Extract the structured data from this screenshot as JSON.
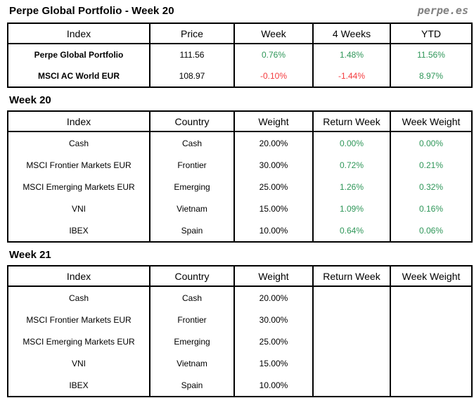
{
  "page": {
    "title": "Perpe Global Portfolio - Week 20",
    "brand": "perpe.es"
  },
  "colors": {
    "positive": "#2E9658",
    "negative": "#F43B3E",
    "brand_gray": "#808080",
    "border": "#000000"
  },
  "summary_table": {
    "headers": [
      "Index",
      "Price",
      "Week",
      "4 Weeks",
      "YTD"
    ],
    "rows": [
      {
        "index": "Perpe Global Portfolio",
        "price": "111.56",
        "week": "0.76%",
        "four_weeks": "1.48%",
        "ytd": "11.56%"
      },
      {
        "index": "MSCI AC World EUR",
        "price": "108.97",
        "week": "-0.10%",
        "four_weeks": "-1.44%",
        "ytd": "8.97%"
      }
    ]
  },
  "week20": {
    "label": "Week 20",
    "headers": [
      "Index",
      "Country",
      "Weight",
      "Return Week",
      "Week Weight"
    ],
    "rows": [
      {
        "index": "Cash",
        "country": "Cash",
        "weight": "20.00%",
        "return_week": "0.00%",
        "week_weight": "0.00%"
      },
      {
        "index": "MSCI Frontier Markets EUR",
        "country": "Frontier",
        "weight": "30.00%",
        "return_week": "0.72%",
        "week_weight": "0.21%"
      },
      {
        "index": "MSCI Emerging Markets EUR",
        "country": "Emerging",
        "weight": "25.00%",
        "return_week": "1.26%",
        "week_weight": "0.32%"
      },
      {
        "index": "VNI",
        "country": "Vietnam",
        "weight": "15.00%",
        "return_week": "1.09%",
        "week_weight": "0.16%"
      },
      {
        "index": "IBEX",
        "country": "Spain",
        "weight": "10.00%",
        "return_week": "0.64%",
        "week_weight": "0.06%"
      }
    ]
  },
  "week21": {
    "label": "Week 21",
    "headers": [
      "Index",
      "Country",
      "Weight",
      "Return Week",
      "Week Weight"
    ],
    "rows": [
      {
        "index": "Cash",
        "country": "Cash",
        "weight": "20.00%",
        "return_week": "",
        "week_weight": ""
      },
      {
        "index": "MSCI Frontier Markets EUR",
        "country": "Frontier",
        "weight": "30.00%",
        "return_week": "",
        "week_weight": ""
      },
      {
        "index": "MSCI Emerging Markets EUR",
        "country": "Emerging",
        "weight": "25.00%",
        "return_week": "",
        "week_weight": ""
      },
      {
        "index": "VNI",
        "country": "Vietnam",
        "weight": "15.00%",
        "return_week": "",
        "week_weight": ""
      },
      {
        "index": "IBEX",
        "country": "Spain",
        "weight": "10.00%",
        "return_week": "",
        "week_weight": ""
      }
    ]
  }
}
